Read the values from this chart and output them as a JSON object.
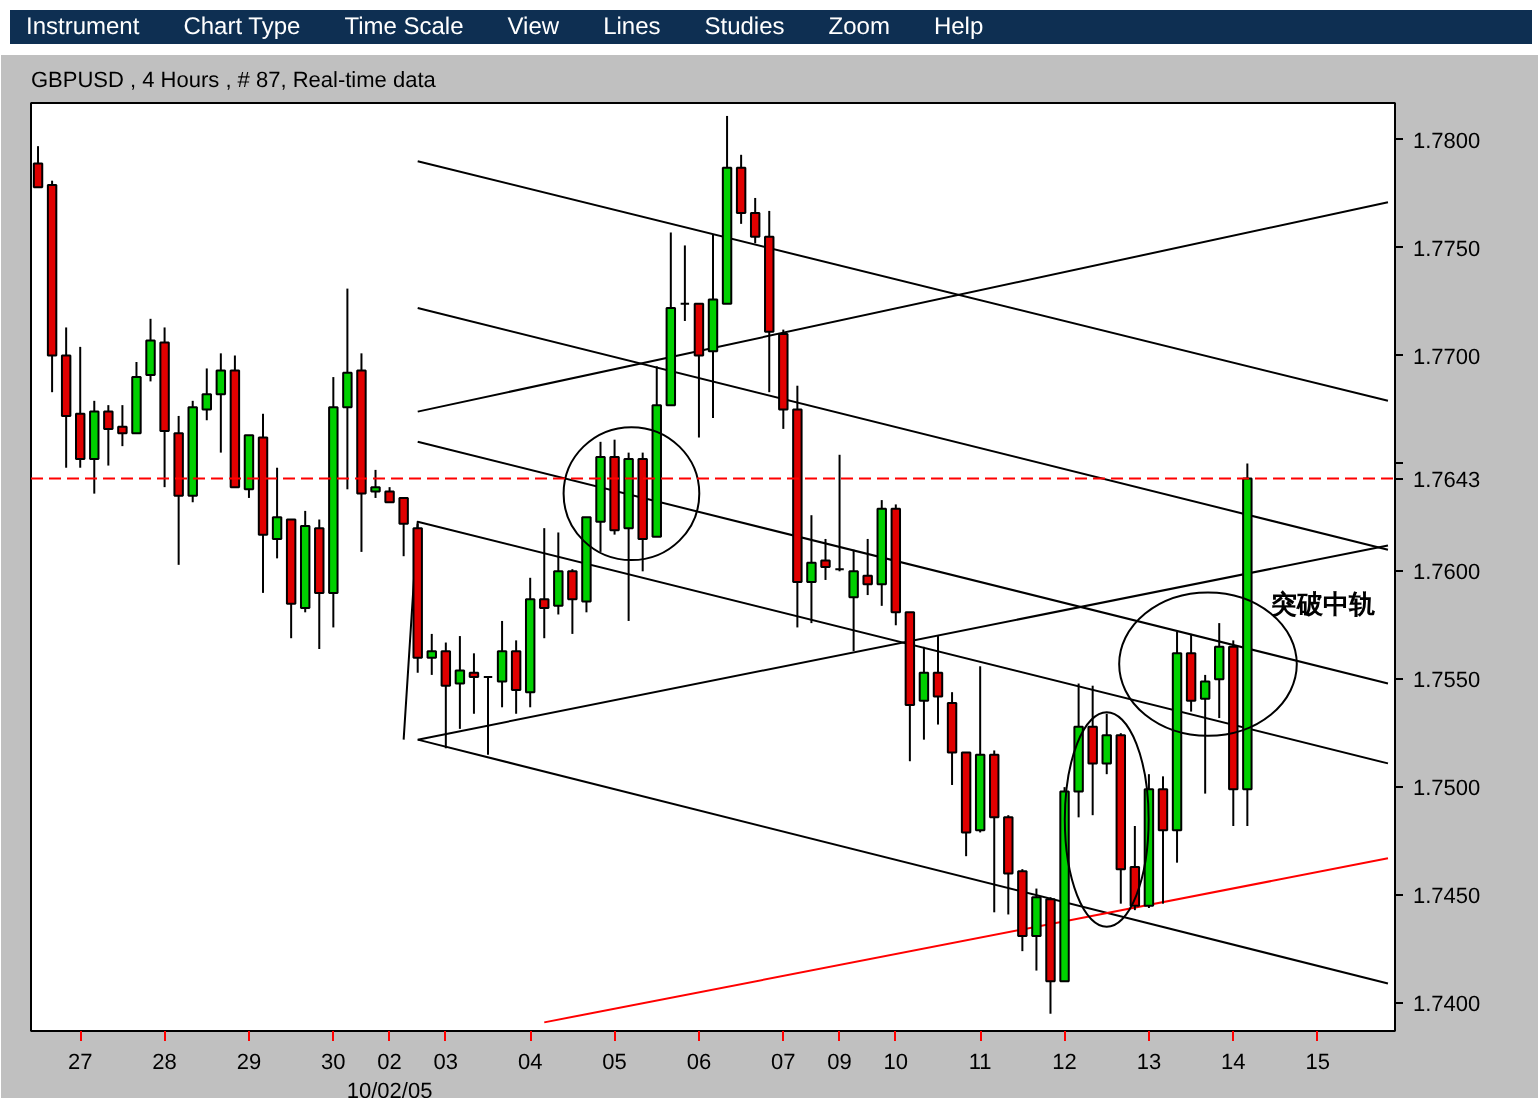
{
  "chart_data": {
    "type": "candlestick",
    "title": "GBPUSD , 4 Hours , # 87, Real-time data",
    "annotations": [
      "Instrument",
      "Chart Type",
      "Time Scale",
      "View",
      "Lines",
      "Studies",
      "Zoom",
      "Help",
      "突破中轨"
    ],
    "categories": [
      null,
      null,
      null,
      "27",
      null,
      null,
      null,
      null,
      null,
      "28",
      null,
      null,
      null,
      null,
      null,
      "29",
      null,
      null,
      null,
      null,
      null,
      "30",
      null,
      null,
      null,
      "02\n10/02/05",
      null,
      null,
      null,
      "03",
      null,
      null,
      null,
      null,
      null,
      "04",
      null,
      null,
      null,
      null,
      null,
      "05",
      null,
      null,
      null,
      null,
      null,
      "06",
      null,
      null,
      null,
      null,
      null,
      "07",
      null,
      null,
      null,
      "09",
      null,
      null,
      null,
      "10",
      null,
      null,
      null,
      null,
      null,
      "11",
      null,
      null,
      null,
      null,
      null,
      "12",
      null,
      null,
      null,
      null,
      null,
      "13",
      null,
      null,
      null,
      null,
      null,
      "14",
      null,
      null,
      null,
      null,
      null,
      "15",
      null,
      null,
      null,
      null,
      null
    ],
    "ohlc": [
      [
        1.7789,
        1.7797,
        1.7778,
        1.7778
      ],
      [
        1.7779,
        1.7781,
        1.7683,
        1.77
      ],
      [
        1.77,
        1.7713,
        1.7648,
        1.7672
      ],
      [
        1.7673,
        1.7704,
        1.7648,
        1.7652
      ],
      [
        1.7652,
        1.7679,
        1.7636,
        1.7674
      ],
      [
        1.7674,
        1.7677,
        1.7649,
        1.7666
      ],
      [
        1.7667,
        1.7677,
        1.7658,
        1.7664
      ],
      [
        1.7664,
        1.7697,
        1.7664,
        1.769
      ],
      [
        1.7691,
        1.7717,
        1.7688,
        1.7707
      ],
      [
        1.7706,
        1.7713,
        1.7639,
        1.7665
      ],
      [
        1.7664,
        1.7672,
        1.7603,
        1.7635
      ],
      [
        1.7635,
        1.7679,
        1.7632,
        1.7676
      ],
      [
        1.7675,
        1.7694,
        1.767,
        1.7682
      ],
      [
        1.7682,
        1.7701,
        1.7655,
        1.7693
      ],
      [
        1.7693,
        1.77,
        1.7639,
        1.7639
      ],
      [
        1.7638,
        1.7663,
        1.7634,
        1.7663
      ],
      [
        1.7662,
        1.7673,
        1.759,
        1.7617
      ],
      [
        1.7615,
        1.7648,
        1.7606,
        1.7625
      ],
      [
        1.7624,
        1.7624,
        1.7569,
        1.7585
      ],
      [
        1.7583,
        1.7628,
        1.7581,
        1.7621
      ],
      [
        1.762,
        1.7624,
        1.7564,
        1.759
      ],
      [
        1.759,
        1.769,
        1.7574,
        1.7676
      ],
      [
        1.7676,
        1.7731,
        1.7638,
        1.7692
      ],
      [
        1.7693,
        1.7701,
        1.7609,
        1.7636
      ],
      [
        1.7637,
        1.7647,
        1.7634,
        1.7639
      ],
      [
        1.7637,
        1.7639,
        1.7632,
        1.7632
      ],
      [
        1.7634,
        1.7634,
        1.7607,
        1.7622
      ],
      [
        1.762,
        1.7622,
        1.7553,
        1.756
      ],
      [
        1.756,
        1.7571,
        1.7552,
        1.7563
      ],
      [
        1.7563,
        1.7567,
        1.7518,
        1.7547
      ],
      [
        1.7548,
        1.757,
        1.7527,
        1.7554
      ],
      [
        1.7553,
        1.7562,
        1.7534,
        1.7551
      ],
      [
        1.7551,
        1.7551,
        1.7515,
        1.7551
      ],
      [
        1.7549,
        1.7577,
        1.7537,
        1.7563
      ],
      [
        1.7563,
        1.7568,
        1.7534,
        1.7545
      ],
      [
        1.7544,
        1.7597,
        1.7537,
        1.7587
      ],
      [
        1.7587,
        1.762,
        1.7569,
        1.7583
      ],
      [
        1.7584,
        1.7618,
        1.758,
        1.76
      ],
      [
        1.76,
        1.7601,
        1.7571,
        1.7587
      ],
      [
        1.7586,
        1.7625,
        1.7581,
        1.7625
      ],
      [
        1.7623,
        1.766,
        1.7609,
        1.7653
      ],
      [
        1.7653,
        1.7661,
        1.7617,
        1.7619
      ],
      [
        1.762,
        1.7655,
        1.7577,
        1.7652
      ],
      [
        1.7652,
        1.7655,
        1.76,
        1.7615
      ],
      [
        1.7616,
        1.7695,
        1.7616,
        1.7677
      ],
      [
        1.7677,
        1.7757,
        1.7677,
        1.7722
      ],
      [
        1.7724,
        1.7751,
        1.7716,
        1.7724
      ],
      [
        1.7724,
        1.7724,
        1.7662,
        1.77
      ],
      [
        1.7702,
        1.7756,
        1.7671,
        1.7726
      ],
      [
        1.7724,
        1.7811,
        1.7724,
        1.7787
      ],
      [
        1.7787,
        1.7793,
        1.7761,
        1.7766
      ],
      [
        1.7766,
        1.7773,
        1.7752,
        1.7755
      ],
      [
        1.7755,
        1.7767,
        1.7683,
        1.7711
      ],
      [
        1.771,
        1.7712,
        1.7666,
        1.7675
      ],
      [
        1.7675,
        1.7686,
        1.7574,
        1.7595
      ],
      [
        1.7595,
        1.7626,
        1.7576,
        1.7604
      ],
      [
        1.7605,
        1.7615,
        1.7596,
        1.7602
      ],
      [
        1.7601,
        1.7654,
        1.76,
        1.7601
      ],
      [
        1.7588,
        1.761,
        1.7563,
        1.76
      ],
      [
        1.7598,
        1.7615,
        1.7589,
        1.7594
      ],
      [
        1.7594,
        1.7633,
        1.7584,
        1.7629
      ],
      [
        1.7629,
        1.7631,
        1.7575,
        1.7581
      ],
      [
        1.7581,
        1.7581,
        1.7512,
        1.7538
      ],
      [
        1.754,
        1.7565,
        1.7522,
        1.7553
      ],
      [
        1.7553,
        1.757,
        1.7529,
        1.7542
      ],
      [
        1.7539,
        1.7544,
        1.7501,
        1.7516
      ],
      [
        1.7516,
        1.7516,
        1.7468,
        1.7479
      ],
      [
        1.748,
        1.7556,
        1.7479,
        1.7515
      ],
      [
        1.7515,
        1.7517,
        1.7442,
        1.7486
      ],
      [
        1.7486,
        1.7487,
        1.7441,
        1.746
      ],
      [
        1.7461,
        1.7462,
        1.7424,
        1.7431
      ],
      [
        1.7431,
        1.7453,
        1.7415,
        1.7449
      ],
      [
        1.7448,
        1.7449,
        1.7395,
        1.741
      ],
      [
        1.741,
        1.75,
        1.741,
        1.7498
      ],
      [
        1.7498,
        1.7548,
        1.7486,
        1.7528
      ],
      [
        1.7528,
        1.7547,
        1.7487,
        1.7511
      ],
      [
        1.7511,
        1.7534,
        1.7506,
        1.7524
      ],
      [
        1.7524,
        1.7525,
        1.7446,
        1.7462
      ],
      [
        1.7463,
        1.7482,
        1.7443,
        1.7445
      ],
      [
        1.7445,
        1.7506,
        1.7444,
        1.7499
      ],
      [
        1.7499,
        1.7505,
        1.7446,
        1.748
      ],
      [
        1.748,
        1.7572,
        1.7465,
        1.7562
      ],
      [
        1.7562,
        1.7571,
        1.7535,
        1.754
      ],
      [
        1.7541,
        1.7552,
        1.7497,
        1.7549
      ],
      [
        1.755,
        1.7576,
        1.7532,
        1.7565
      ],
      [
        1.7565,
        1.7568,
        1.7482,
        1.7499
      ],
      [
        1.7499,
        1.765,
        1.7482,
        1.7643
      ],
      null,
      null,
      null,
      null,
      null,
      null,
      null,
      null,
      null,
      null
    ],
    "colors": [
      "#e00000",
      "#e00000",
      "#e00000",
      "#e00000",
      "#00d000",
      "#e00000",
      "#e00000",
      "#00d000",
      "#00d000",
      "#e00000",
      "#e00000",
      "#00d000",
      "#00d000",
      "#00d000",
      "#e00000",
      "#00d000",
      "#e00000",
      "#00d000",
      "#e00000",
      "#00d000",
      "#e00000",
      "#00d000",
      "#00d000",
      "#e00000",
      "#00d000",
      "#e00000",
      "#e00000",
      "#e00000",
      "#00d000",
      "#e00000",
      "#00d000",
      "#e00000",
      "#000000",
      "#00d000",
      "#e00000",
      "#00d000",
      "#e00000",
      "#00d000",
      "#e00000",
      "#00d000",
      "#00d000",
      "#e00000",
      "#00d000",
      "#e00000",
      "#00d000",
      "#00d000",
      "#000000",
      "#e00000",
      "#00d000",
      "#00d000",
      "#e00000",
      "#e00000",
      "#e00000",
      "#e00000",
      "#e00000",
      "#00d000",
      "#e00000",
      "#000000",
      "#00d000",
      "#e00000",
      "#00d000",
      "#e00000",
      "#e00000",
      "#00d000",
      "#e00000",
      "#e00000",
      "#e00000",
      "#00d000",
      "#e00000",
      "#e00000",
      "#e00000",
      "#00d000",
      "#e00000",
      "#00d000",
      "#00d000",
      "#e00000",
      "#00d000",
      "#e00000",
      "#e00000",
      "#00d000",
      "#e00000",
      "#00d000",
      "#e00000",
      "#00d000",
      "#00d000",
      "#e00000",
      "#00d000",
      null,
      null,
      null,
      null,
      null,
      null,
      null,
      null,
      null,
      null
    ],
    "series": [
      {
        "type": "line",
        "color": "#000000",
        "values": [
          null,
          null,
          null,
          null,
          null,
          null,
          null,
          null,
          null,
          null,
          null,
          null,
          null,
          null,
          null,
          null,
          null,
          null,
          null,
          null,
          null,
          null,
          null,
          null,
          null,
          null,
          null,
          1.779,
          null,
          null,
          null,
          null,
          null,
          null,
          null,
          null,
          null,
          null,
          null,
          null,
          null,
          null,
          null,
          null,
          null,
          null,
          null,
          null,
          null,
          null,
          null,
          null,
          null,
          null,
          null,
          null,
          null,
          null,
          null,
          null,
          null,
          null,
          null,
          null,
          null,
          null,
          null,
          null,
          null,
          null,
          null,
          null,
          null,
          null,
          null,
          null,
          null,
          null,
          null,
          null,
          null,
          null,
          null,
          null,
          null,
          null,
          null,
          null,
          null,
          null,
          null,
          null,
          null,
          null,
          null,
          null,
          1.7679
        ]
      },
      {
        "type": "line",
        "color": "#000000",
        "values": [
          null,
          null,
          null,
          null,
          null,
          null,
          null,
          null,
          null,
          null,
          null,
          null,
          null,
          null,
          null,
          null,
          null,
          null,
          null,
          null,
          null,
          null,
          null,
          null,
          null,
          null,
          null,
          1.7722,
          null,
          null,
          null,
          null,
          null,
          null,
          null,
          null,
          null,
          null,
          null,
          null,
          null,
          null,
          null,
          null,
          null,
          null,
          null,
          null,
          null,
          null,
          null,
          null,
          null,
          null,
          null,
          null,
          null,
          null,
          null,
          null,
          null,
          null,
          null,
          null,
          null,
          null,
          null,
          null,
          null,
          null,
          null,
          null,
          null,
          null,
          null,
          null,
          null,
          null,
          null,
          null,
          null,
          null,
          null,
          null,
          null,
          null,
          null,
          null,
          null,
          null,
          null,
          null,
          null,
          null,
          null,
          null,
          1.761
        ]
      },
      {
        "type": "line",
        "color": "#000000",
        "values": [
          null,
          null,
          null,
          null,
          null,
          null,
          null,
          null,
          null,
          null,
          null,
          null,
          null,
          null,
          null,
          null,
          null,
          null,
          null,
          null,
          null,
          null,
          null,
          null,
          null,
          null,
          null,
          1.766,
          null,
          null,
          null,
          null,
          null,
          null,
          null,
          null,
          null,
          null,
          null,
          null,
          null,
          null,
          null,
          null,
          null,
          null,
          null,
          null,
          null,
          null,
          null,
          null,
          null,
          null,
          null,
          null,
          null,
          null,
          null,
          null,
          null,
          null,
          null,
          null,
          null,
          null,
          null,
          null,
          null,
          null,
          null,
          null,
          null,
          null,
          null,
          null,
          null,
          null,
          null,
          null,
          null,
          null,
          null,
          null,
          null,
          null,
          null,
          null,
          null,
          null,
          null,
          null,
          null,
          null,
          null,
          null,
          1.7548
        ]
      },
      {
        "type": "line",
        "color": "#000000",
        "values": [
          null,
          null,
          null,
          null,
          null,
          null,
          null,
          null,
          null,
          null,
          null,
          null,
          null,
          null,
          null,
          null,
          null,
          null,
          null,
          null,
          null,
          null,
          null,
          null,
          null,
          null,
          1.7522,
          1.7623,
          null,
          null,
          null,
          null,
          null,
          null,
          null,
          null,
          null,
          null,
          null,
          null,
          null,
          null,
          null,
          null,
          null,
          null,
          null,
          null,
          null,
          null,
          null,
          null,
          null,
          null,
          null,
          null,
          null,
          null,
          null,
          null,
          null,
          null,
          null,
          null,
          null,
          null,
          null,
          null,
          null,
          null,
          null,
          null,
          null,
          null,
          null,
          null,
          null,
          null,
          null,
          null,
          null,
          null,
          null,
          null,
          null,
          null,
          null,
          null,
          null,
          null,
          null,
          null,
          null,
          null,
          null,
          null,
          1.7511
        ]
      },
      {
        "type": "line",
        "color": "#000000",
        "values": [
          null,
          null,
          null,
          null,
          null,
          null,
          null,
          null,
          null,
          null,
          null,
          null,
          null,
          null,
          null,
          null,
          null,
          null,
          null,
          null,
          null,
          null,
          null,
          null,
          null,
          null,
          null,
          1.7522,
          null,
          null,
          null,
          null,
          null,
          null,
          null,
          null,
          null,
          null,
          null,
          null,
          null,
          null,
          null,
          null,
          null,
          null,
          null,
          null,
          null,
          null,
          null,
          null,
          null,
          null,
          null,
          null,
          null,
          null,
          null,
          null,
          null,
          null,
          null,
          null,
          null,
          null,
          null,
          null,
          null,
          null,
          null,
          null,
          null,
          null,
          null,
          null,
          null,
          null,
          null,
          null,
          null,
          null,
          null,
          null,
          null,
          null,
          null,
          null,
          null,
          null,
          null,
          null,
          null,
          null,
          null,
          null,
          1.7409
        ]
      },
      {
        "type": "line",
        "color": "#000000",
        "values": [
          null,
          null,
          null,
          null,
          null,
          null,
          null,
          null,
          null,
          null,
          null,
          null,
          null,
          null,
          null,
          null,
          null,
          null,
          null,
          null,
          null,
          null,
          null,
          null,
          null,
          null,
          null,
          1.7674,
          null,
          null,
          null,
          null,
          null,
          null,
          null,
          null,
          null,
          null,
          null,
          null,
          null,
          null,
          null,
          null,
          null,
          null,
          null,
          null,
          null,
          null,
          null,
          null,
          null,
          null,
          null,
          null,
          null,
          null,
          null,
          null,
          null,
          null,
          null,
          null,
          null,
          null,
          null,
          null,
          null,
          null,
          null,
          null,
          null,
          null,
          null,
          null,
          null,
          null,
          null,
          null,
          null,
          null,
          null,
          null,
          null,
          null,
          null,
          null,
          null,
          null,
          null,
          null,
          null,
          null,
          null,
          null,
          1.7771
        ]
      },
      {
        "type": "line",
        "color": "#000000",
        "values": [
          null,
          null,
          null,
          null,
          null,
          null,
          null,
          null,
          null,
          null,
          null,
          null,
          null,
          null,
          null,
          null,
          null,
          null,
          null,
          null,
          null,
          null,
          null,
          null,
          null,
          null,
          null,
          1.7522,
          null,
          null,
          null,
          null,
          null,
          null,
          null,
          null,
          null,
          null,
          null,
          null,
          null,
          null,
          null,
          null,
          null,
          null,
          null,
          null,
          null,
          null,
          null,
          null,
          null,
          null,
          null,
          null,
          null,
          null,
          null,
          null,
          null,
          null,
          null,
          null,
          null,
          null,
          null,
          null,
          null,
          null,
          null,
          null,
          null,
          null,
          null,
          null,
          null,
          null,
          null,
          null,
          null,
          null,
          null,
          null,
          null,
          null,
          null,
          null,
          null,
          null,
          null,
          null,
          null,
          null,
          null,
          null,
          1.7612
        ]
      },
      {
        "type": "line",
        "color": "#ff0000",
        "values": [
          null,
          null,
          null,
          null,
          null,
          null,
          null,
          null,
          null,
          null,
          null,
          null,
          null,
          null,
          null,
          null,
          null,
          null,
          null,
          null,
          null,
          null,
          null,
          null,
          null,
          null,
          null,
          null,
          null,
          null,
          null,
          null,
          null,
          null,
          null,
          null,
          1.7391,
          null,
          null,
          null,
          null,
          null,
          null,
          null,
          null,
          null,
          null,
          null,
          null,
          null,
          null,
          null,
          null,
          null,
          null,
          null,
          null,
          null,
          null,
          null,
          null,
          null,
          null,
          null,
          null,
          null,
          null,
          null,
          null,
          null,
          null,
          null,
          null,
          null,
          null,
          null,
          null,
          null,
          null,
          null,
          null,
          null,
          null,
          null,
          null,
          null,
          null,
          null,
          null,
          null,
          null,
          null,
          null,
          null,
          null,
          null,
          1.7467
        ]
      }
    ],
    "ref_lines": [
      {
        "axis": "y",
        "value": 1.7643,
        "label": "1.7643",
        "color": "#ff0000",
        "line_style": "dashed"
      }
    ],
    "ylim": [
      1.7387,
      1.7817
    ],
    "yticks": [
      {
        "value": 1.74,
        "label": "1.7400"
      },
      {
        "value": 1.745,
        "label": "1.7450"
      },
      {
        "value": 1.75,
        "label": "1.7500"
      },
      {
        "value": 1.755,
        "label": "1.7550"
      },
      {
        "value": 1.76,
        "label": "1.7600"
      },
      {
        "value": 1.765,
        "label": null
      },
      {
        "value": 1.77,
        "label": "1.7700"
      },
      {
        "value": 1.775,
        "label": "1.7750"
      },
      {
        "value": 1.78,
        "label": "1.7800"
      }
    ],
    "grid": false
  }
}
